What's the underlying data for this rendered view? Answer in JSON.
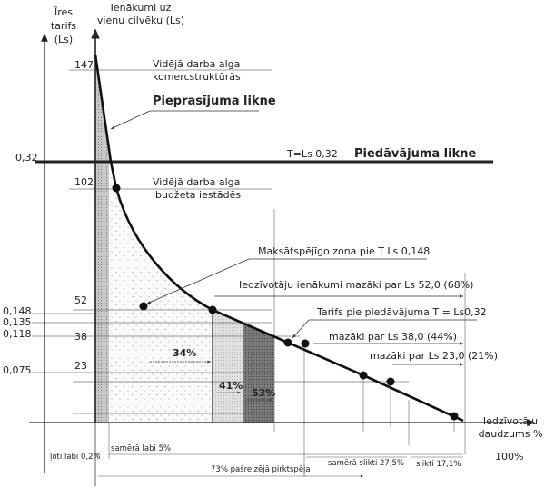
{
  "axes": {
    "left_title": [
      "Īres",
      "tarifs",
      "(Ls)"
    ],
    "inner_title": [
      "Ienākumi uz",
      "vienu cilvēku (Ls)"
    ],
    "x_title": [
      "Iedzīvotāju",
      "daudzums %"
    ],
    "x_end": "100%"
  },
  "left_ticks": [
    "0,32",
    "0,148",
    "0,135",
    "0,118",
    "0,075"
  ],
  "income_ticks": [
    "147",
    "102",
    "52",
    "38",
    "23"
  ],
  "annotations": {
    "wage_commercial": [
      "Vidējā darba alga",
      "komercstruktūrās"
    ],
    "demand_curve": "Pieprasījuma likne",
    "supply_tariff": "T=Ls 0,32",
    "supply_curve": "Piedāvājuma likne",
    "wage_budget": [
      "Vidējā darba alga",
      "budžeta iestādēs"
    ],
    "solvent_zone": "Maksātspējīgo zona pie T Ls 0,148",
    "income_less_52": "Iedzīvotāju ienākumi mazāki par Ls 52,0 (68%)",
    "tariff_supply": "Tarifs pie piedāvājuma T = Ls0,32",
    "less_38": "mazāki par Ls 38,0 (44%)",
    "less_23": "mazāki par Ls 23,0 (21%)"
  },
  "shares": [
    "34%",
    "41%",
    "53%"
  ],
  "bottom": {
    "very_good": "ļoti labi 0,2%",
    "fairly_good": "samērā labi 5%",
    "current_purchasing": "73% pašreizējā pirktspēja",
    "fairly_bad": "samērā slikti 27,5%",
    "bad": "slikti 17,1%"
  }
}
